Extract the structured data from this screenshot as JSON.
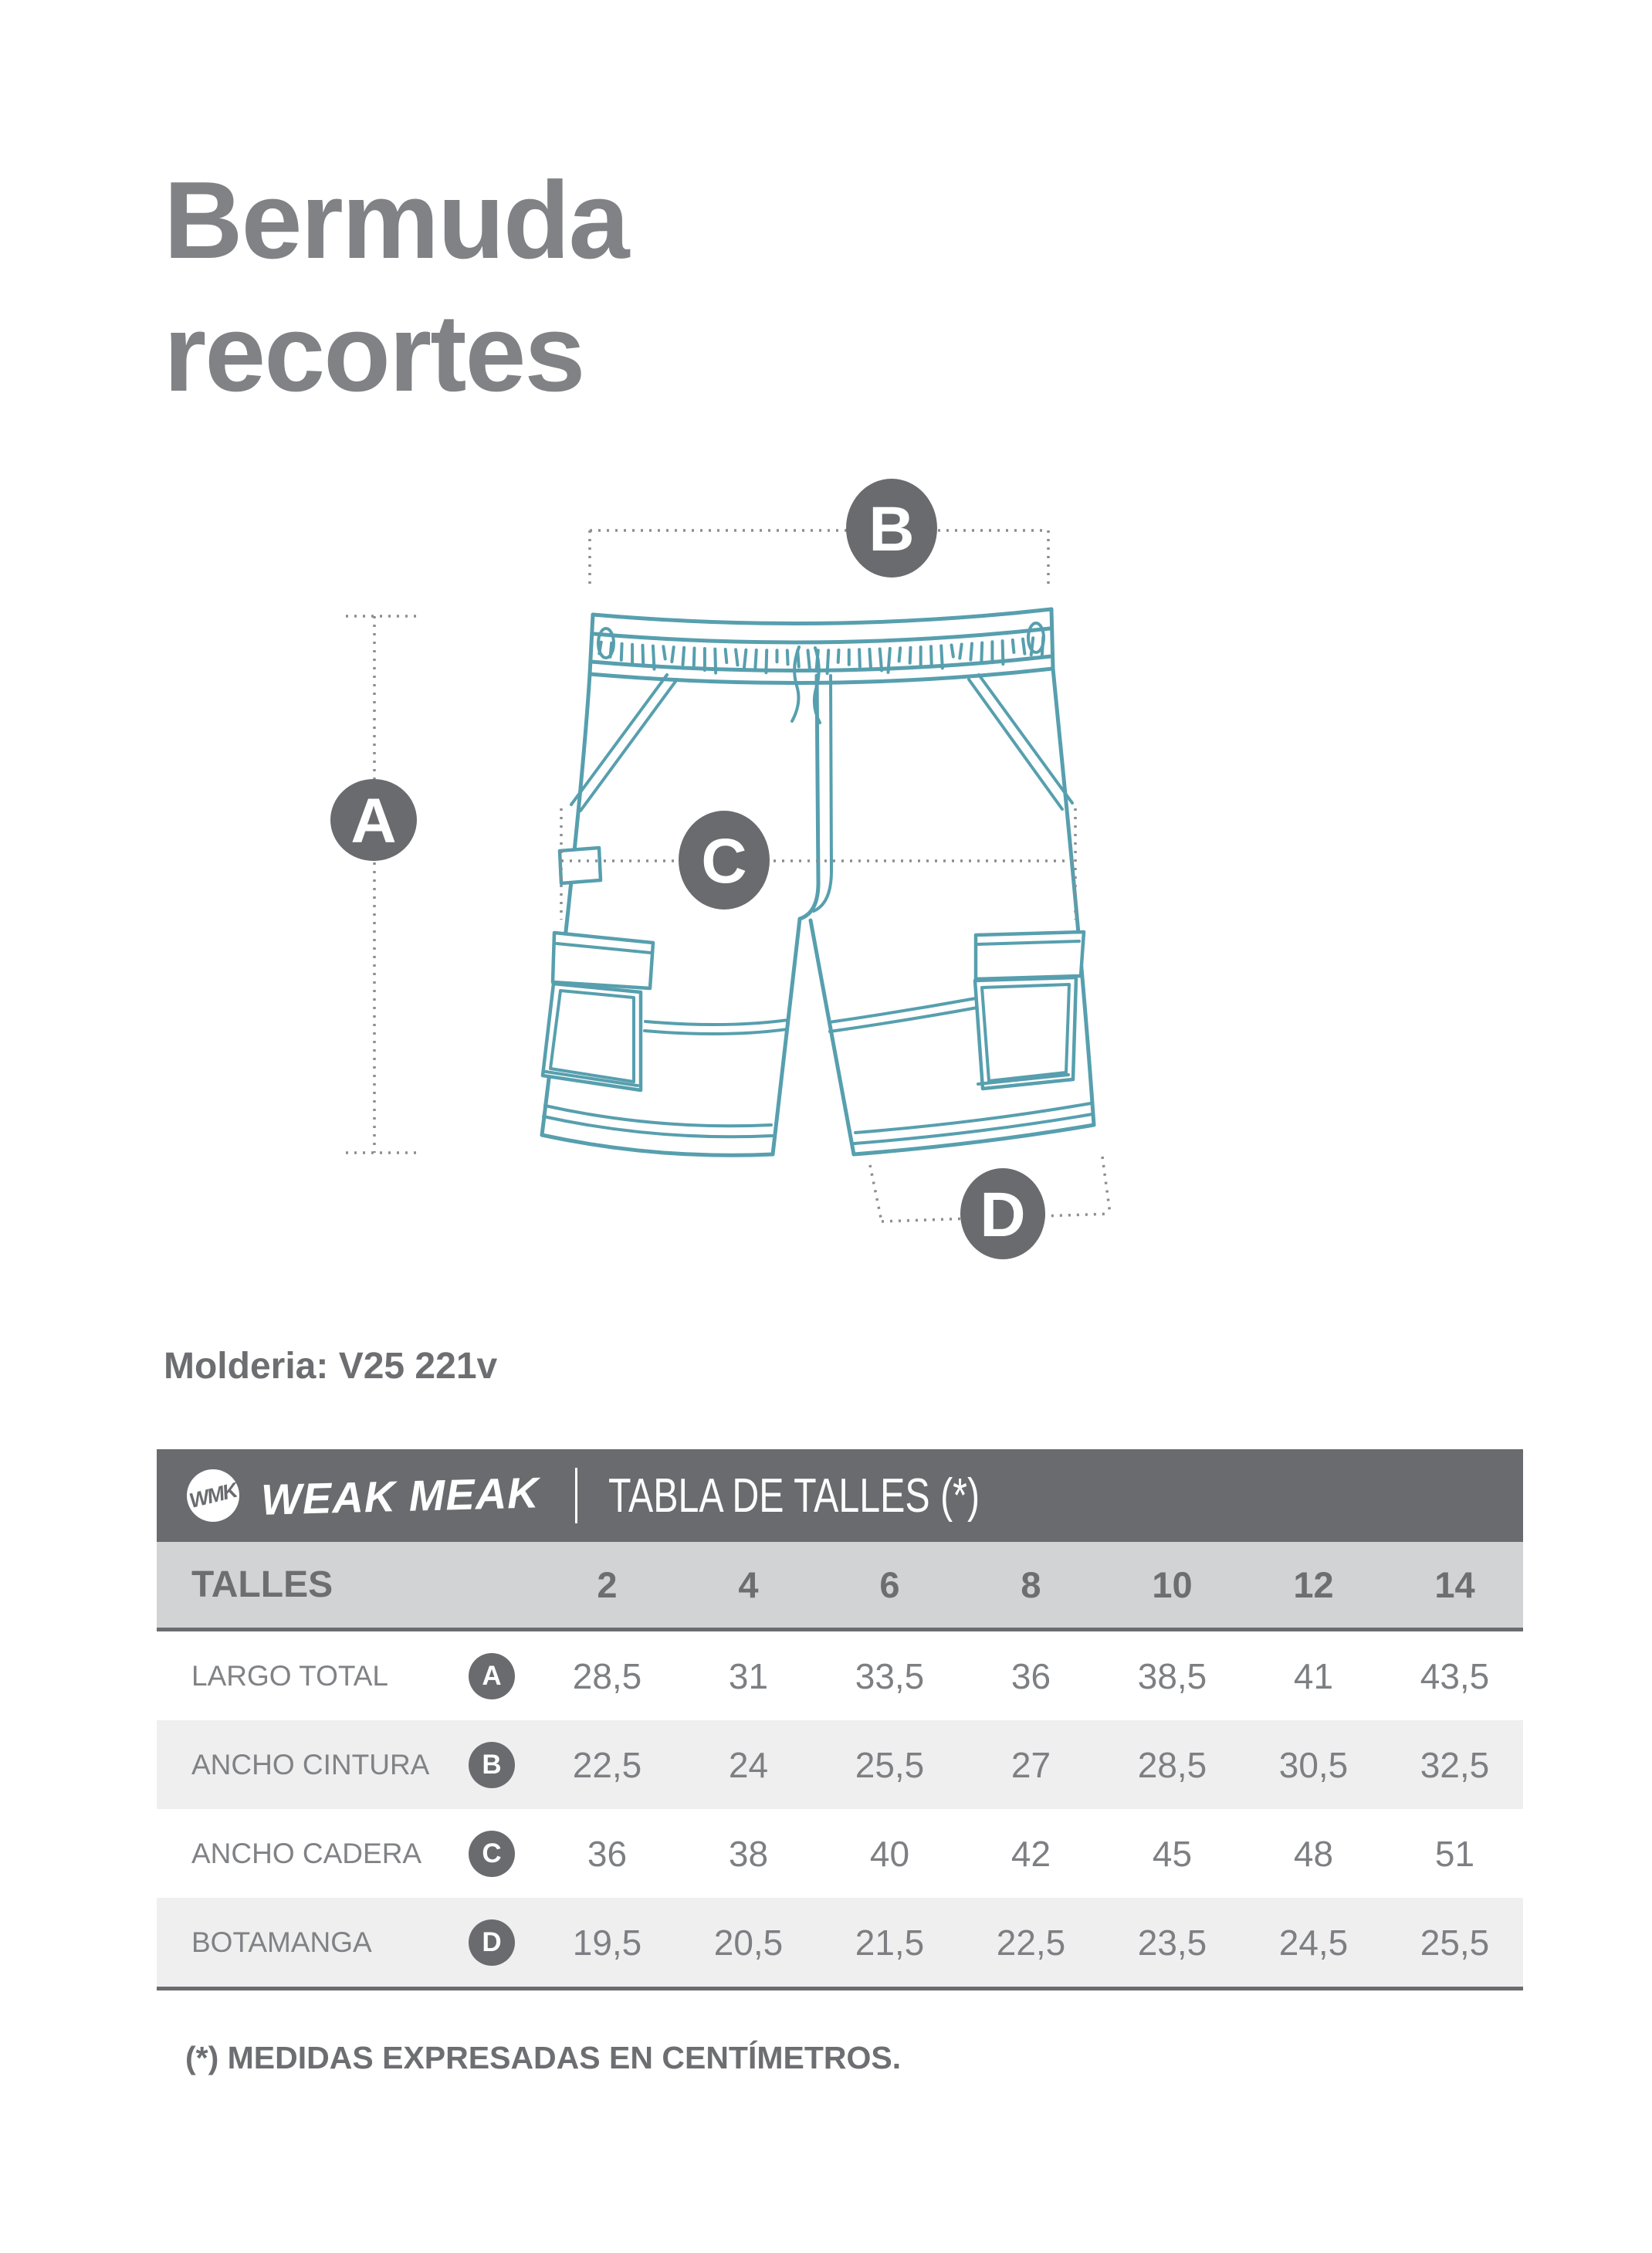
{
  "page": {
    "title_line1": "Bermuda",
    "title_line2": "recortes",
    "molderia_label": "Molderia: V25 221v",
    "footnote": "(*) MEDIDAS EXPRESADAS EN CENTÍMETROS."
  },
  "diagram": {
    "garment": "bermuda cargo shorts front view line drawing",
    "markers": [
      {
        "letter": "A"
      },
      {
        "letter": "B"
      },
      {
        "letter": "C"
      },
      {
        "letter": "D"
      }
    ]
  },
  "size_table": {
    "brand_logo_monogram": "WMK",
    "brand_name": "WEAK MEAK",
    "header_title": "TABLA DE TALLES (*)",
    "sizes_header_label": "TALLES",
    "sizes": [
      "2",
      "4",
      "6",
      "8",
      "10",
      "12",
      "14"
    ],
    "rows": [
      {
        "label": "LARGO TOTAL",
        "marker": "A",
        "values": [
          "28,5",
          "31",
          "33,5",
          "36",
          "38,5",
          "41",
          "43,5"
        ]
      },
      {
        "label": "ANCHO CINTURA",
        "marker": "B",
        "values": [
          "22,5",
          "24",
          "25,5",
          "27",
          "28,5",
          "30,5",
          "32,5"
        ]
      },
      {
        "label": "ANCHO CADERA",
        "marker": "C",
        "values": [
          "36",
          "38",
          "40",
          "42",
          "45",
          "48",
          "51"
        ]
      },
      {
        "label": "BOTAMANGA",
        "marker": "D",
        "values": [
          "19,5",
          "20,5",
          "21,5",
          "22,5",
          "23,5",
          "24,5",
          "25,5"
        ]
      }
    ]
  },
  "colors": {
    "teal_line": "#579fae",
    "marker_gray": "#6a6b6f",
    "header_bar_bg": "#6a6b6f",
    "sizes_row_bg": "#d2d3d4",
    "alt_row_bg": "#efeff0",
    "title_gray": "#808285",
    "dark_text_gray": "#6d6e71",
    "value_gray": "#7d7f82",
    "dotted_line_gray": "#8b8d90"
  }
}
